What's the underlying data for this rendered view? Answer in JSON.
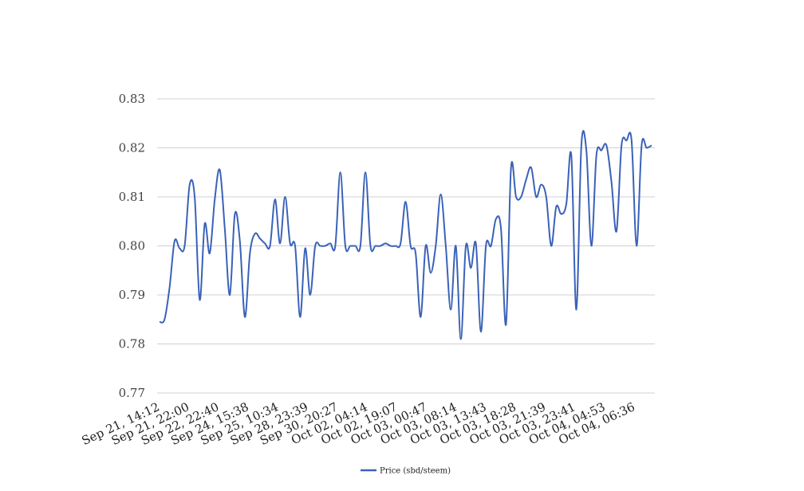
{
  "chart_data": {
    "type": "line",
    "title": "",
    "xlabel": "",
    "ylabel": "",
    "ylim": [
      0.77,
      0.83
    ],
    "yticks": [
      "0.77",
      "0.78",
      "0.79",
      "0.80",
      "0.81",
      "0.82",
      "0.83"
    ],
    "grid": true,
    "legend_position": "bottom-center",
    "xtick_labels": [
      "Sep 21, 14:12",
      "Sep 21, 22:00",
      "Sep 22, 22:40",
      "Sep 24, 15:38",
      "Sep 25, 10:34",
      "Sep 28, 23:39",
      "Sep 30, 20:27",
      "Oct 02, 04:14",
      "Oct 02, 19:07",
      "Oct 03, 00:47",
      "Oct 03, 08:14",
      "Oct 03, 13:43",
      "Oct 03, 18:28",
      "Oct 03, 21:39",
      "Oct 03, 23:41",
      "Oct 04, 04:53",
      "Oct 04, 06:36"
    ],
    "series": [
      {
        "name": "Price (sbd/steem)",
        "color": "#3a62b8",
        "values": [
          0.7845,
          0.785,
          0.7915,
          0.801,
          0.7995,
          0.8,
          0.8125,
          0.81,
          0.789,
          0.8045,
          0.7985,
          0.8095,
          0.8155,
          0.8035,
          0.79,
          0.8065,
          0.801,
          0.7855,
          0.7985,
          0.8025,
          0.8015,
          0.8005,
          0.8,
          0.8095,
          0.8005,
          0.81,
          0.8005,
          0.8,
          0.7855,
          0.7995,
          0.79,
          0.8,
          0.8,
          0.8,
          0.8005,
          0.8,
          0.815,
          0.8,
          0.8,
          0.8,
          0.8,
          0.815,
          0.8,
          0.8,
          0.8,
          0.8005,
          0.8,
          0.8,
          0.8005,
          0.809,
          0.8,
          0.7985,
          0.7855,
          0.8,
          0.7945,
          0.8,
          0.8105,
          0.8,
          0.787,
          0.8,
          0.781,
          0.8,
          0.7955,
          0.8005,
          0.7825,
          0.8,
          0.8,
          0.8055,
          0.8035,
          0.784,
          0.816,
          0.81,
          0.81,
          0.8135,
          0.816,
          0.81,
          0.8125,
          0.81,
          0.8,
          0.808,
          0.8065,
          0.8085,
          0.8185,
          0.787,
          0.8205,
          0.8195,
          0.8,
          0.8185,
          0.8195,
          0.8205,
          0.813,
          0.803,
          0.8205,
          0.8215,
          0.8215,
          0.8,
          0.8205,
          0.82,
          0.8205
        ]
      }
    ]
  }
}
